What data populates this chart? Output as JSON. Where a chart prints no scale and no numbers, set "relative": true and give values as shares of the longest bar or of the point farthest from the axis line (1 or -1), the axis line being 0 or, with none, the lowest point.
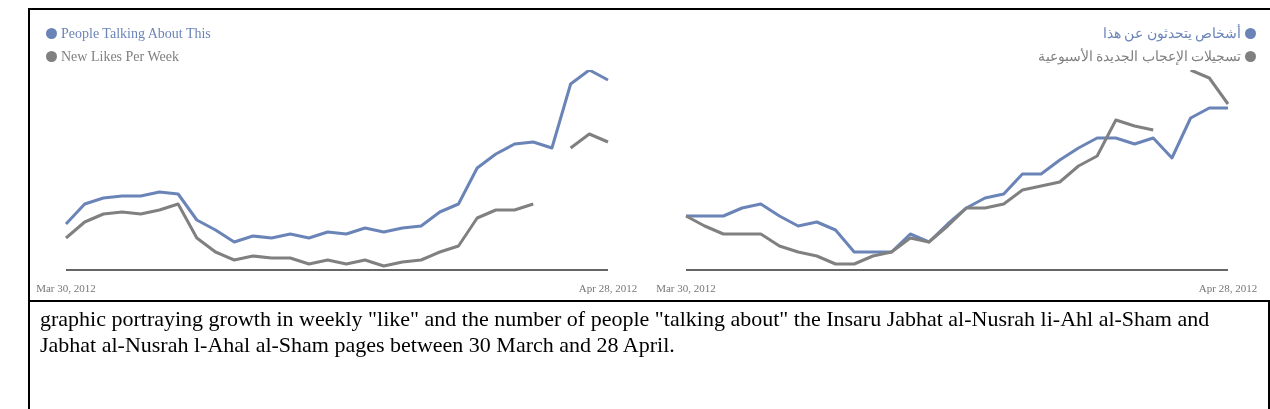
{
  "chart_data": [
    {
      "type": "line",
      "relative": true,
      "legend": "top left",
      "categories": [
        "Mar 30, 2012",
        null,
        null,
        null,
        null,
        null,
        null,
        null,
        null,
        null,
        null,
        null,
        null,
        null,
        null,
        null,
        null,
        null,
        null,
        null,
        null,
        null,
        null,
        null,
        null,
        null,
        null,
        null,
        null,
        "Apr 28, 2012"
      ],
      "series": [
        {
          "name": "People Talking About This",
          "color": "#6b84b8",
          "values": [
            0.23,
            0.33,
            0.36,
            0.37,
            0.37,
            0.39,
            0.38,
            0.25,
            0.2,
            0.14,
            0.17,
            0.16,
            0.18,
            0.16,
            0.19,
            0.18,
            0.21,
            0.19,
            0.21,
            0.22,
            0.29,
            0.33,
            0.51,
            0.58,
            0.63,
            0.64,
            0.61,
            0.93,
            1,
            0.95
          ]
        },
        {
          "name": "New Likes Per Week",
          "color": "#808080",
          "values": [
            0.16,
            0.24,
            0.28,
            0.29,
            0.28,
            0.3,
            0.33,
            0.16,
            0.09,
            0.05,
            0.07,
            0.06,
            0.06,
            0.03,
            0.05,
            0.03,
            0.05,
            0.02,
            0.04,
            0.05,
            0.09,
            0.12,
            0.26,
            0.3,
            0.3,
            0.33,
            null,
            0.61,
            0.68,
            0.64
          ]
        }
      ],
      "annotations": [
        "graphic portraying growth in weekly \"like\" and the number of people \"talking about\" the Insaru Jabhat al-Nusrah li-Ahl al-Sham and Jabhat al-Nusrah l-Ahal al-Sham pages between 30 March and 28 April."
      ]
    },
    {
      "type": "line",
      "relative": true,
      "legend": "top right",
      "categories": [
        "Mar 30, 2012",
        null,
        null,
        null,
        null,
        null,
        null,
        null,
        null,
        null,
        null,
        null,
        null,
        null,
        null,
        null,
        null,
        null,
        null,
        null,
        null,
        null,
        null,
        null,
        null,
        null,
        null,
        null,
        null,
        "Apr 28, 2012"
      ],
      "series": [
        {
          "name": "أشخاص يتحدثون عن هذا",
          "color": "#6b84b8",
          "values": [
            0.27,
            0.27,
            0.27,
            0.31,
            0.33,
            0.27,
            0.22,
            0.24,
            0.2,
            0.09,
            0.09,
            0.09,
            0.18,
            0.14,
            0.23,
            0.31,
            0.36,
            0.38,
            0.48,
            0.48,
            0.55,
            0.61,
            0.66,
            0.66,
            0.63,
            0.66,
            0.56,
            0.76,
            0.81,
            0.81
          ]
        },
        {
          "name": "تسجيلات الإعجاب الجديدة الأسبوعية",
          "color": "#808080",
          "values": [
            0.27,
            0.22,
            0.18,
            0.18,
            0.18,
            0.12,
            0.09,
            0.07,
            0.03,
            0.03,
            0.07,
            0.09,
            0.16,
            0.14,
            0.22,
            0.31,
            0.31,
            0.33,
            0.4,
            0.42,
            0.44,
            0.52,
            0.57,
            0.75,
            0.72,
            0.7,
            null,
            1,
            0.96,
            0.83
          ]
        }
      ]
    }
  ]
}
